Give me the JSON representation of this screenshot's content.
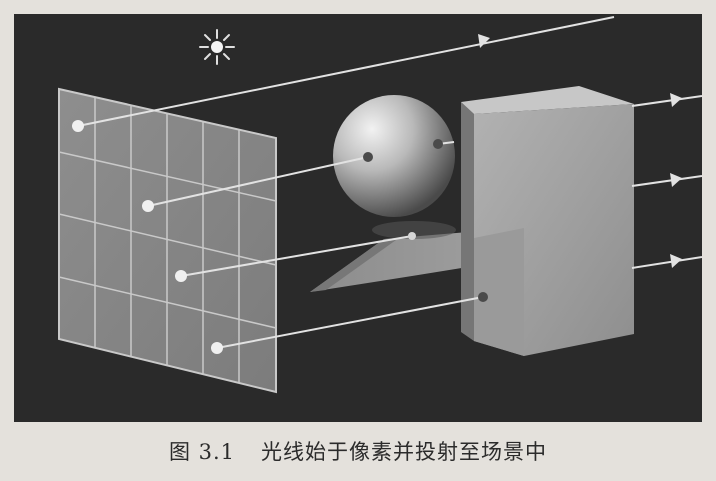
{
  "figure": {
    "caption_number": "图 3.1",
    "caption_text": "光线始于像素并投射至场景中"
  },
  "colors": {
    "background": "#2a2a2a",
    "ray": "#e2e2e2",
    "surface": "#a6a6a6",
    "shadow": "#7a7a7a"
  },
  "icons": [
    "light-source-icon",
    "ray-arrow-icon"
  ]
}
